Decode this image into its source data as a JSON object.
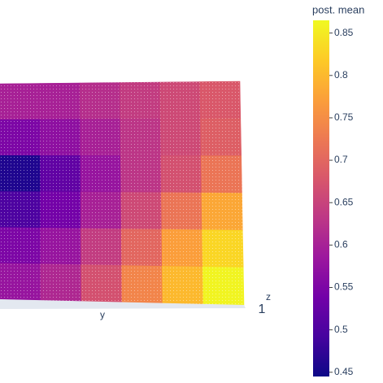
{
  "chart_data": {
    "type": "surface",
    "colorbar_title": "post. mean",
    "colorscale": [
      "#0d0887",
      "#46039f",
      "#7201a8",
      "#9c179e",
      "#bd3786",
      "#d8576b",
      "#ed7953",
      "#fb9f3a",
      "#fdca26",
      "#f0f921"
    ],
    "clim": [
      0.445,
      0.865
    ],
    "cticks": [
      0.45,
      0.5,
      0.55,
      0.6,
      0.65,
      0.7,
      0.75,
      0.8,
      0.85
    ],
    "y_title": "y",
    "z_title": "z",
    "zticks": [
      1
    ],
    "z": [
      [
        0.6,
        0.6,
        0.62,
        0.64,
        0.66,
        0.68
      ],
      [
        0.55,
        0.57,
        0.6,
        0.63,
        0.66,
        0.69
      ],
      [
        0.46,
        0.52,
        0.58,
        0.63,
        0.67,
        0.72
      ],
      [
        0.5,
        0.54,
        0.6,
        0.66,
        0.72,
        0.78
      ],
      [
        0.55,
        0.58,
        0.64,
        0.7,
        0.77,
        0.83
      ],
      [
        0.58,
        0.61,
        0.67,
        0.74,
        0.8,
        0.86
      ]
    ]
  }
}
